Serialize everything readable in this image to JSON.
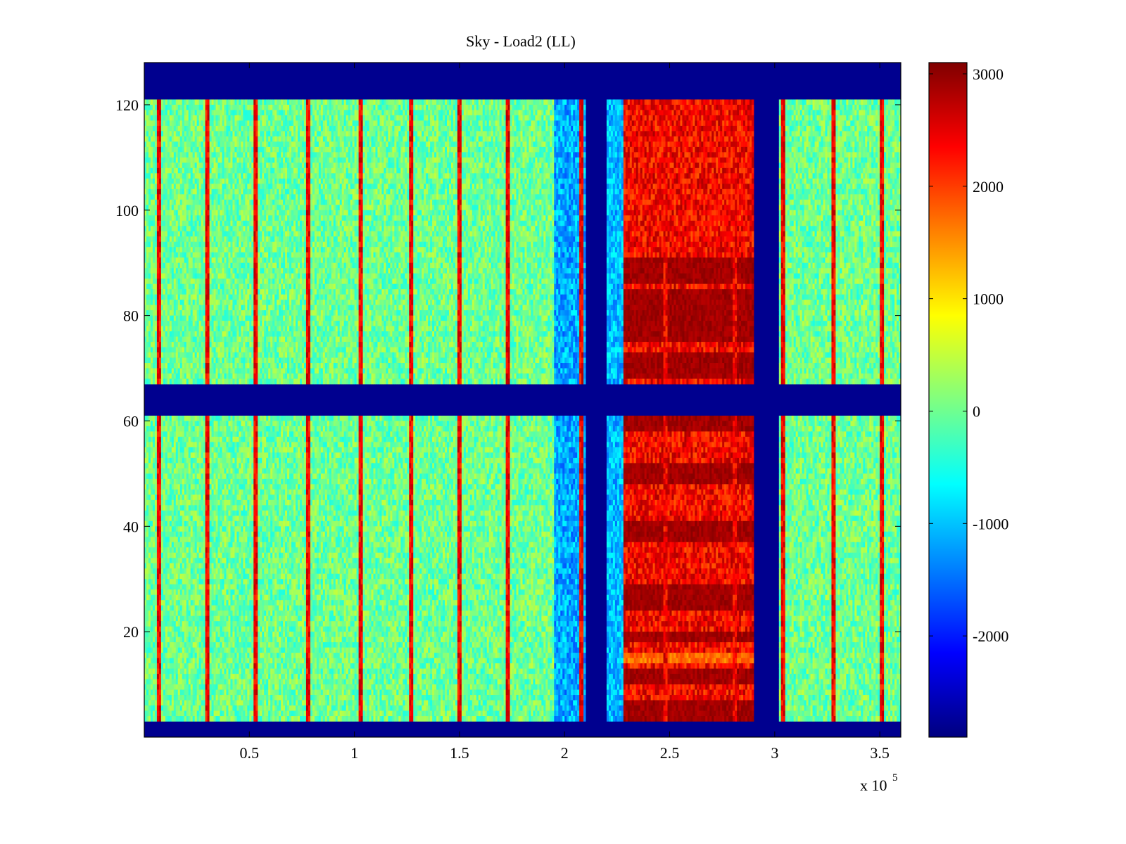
{
  "chart_data": {
    "type": "heatmap",
    "title": "Sky - Load2 (LL)",
    "xlabel": "",
    "ylabel": "",
    "x_multiplier_label": "x 10",
    "x_multiplier_exponent": "5",
    "xlim": [
      0,
      3.6
    ],
    "ylim": [
      0,
      128
    ],
    "x_ticks": [
      {
        "value": 0.5,
        "label": "0.5"
      },
      {
        "value": 1.0,
        "label": "1"
      },
      {
        "value": 1.5,
        "label": "1.5"
      },
      {
        "value": 2.0,
        "label": "2"
      },
      {
        "value": 2.5,
        "label": "2.5"
      },
      {
        "value": 3.0,
        "label": "3"
      },
      {
        "value": 3.5,
        "label": "3.5"
      }
    ],
    "y_ticks": [
      {
        "value": 20,
        "label": "20"
      },
      {
        "value": 40,
        "label": "40"
      },
      {
        "value": 60,
        "label": "60"
      },
      {
        "value": 80,
        "label": "80"
      },
      {
        "value": 100,
        "label": "100"
      },
      {
        "value": 120,
        "label": "120"
      }
    ],
    "colorbar": {
      "colormap": "jet",
      "clim": [
        -2900,
        3100
      ],
      "ticks": [
        {
          "value": 3000,
          "label": "3000"
        },
        {
          "value": 2000,
          "label": "2000"
        },
        {
          "value": 1000,
          "label": "1000"
        },
        {
          "value": 0,
          "label": "0"
        },
        {
          "value": -1000,
          "label": "-1000"
        },
        {
          "value": -2000,
          "label": "-2000"
        }
      ]
    },
    "masked_value": -2900,
    "masked_rows": [
      [
        0,
        3
      ],
      [
        61.5,
        67.5
      ],
      [
        121.5,
        128
      ]
    ],
    "masked_columns": [
      [
        2.1,
        2.2
      ],
      [
        2.9,
        3.02
      ]
    ],
    "column_regions": [
      {
        "x_range": [
          0.0,
          1.95
        ],
        "mean": 0,
        "spread": 500
      },
      {
        "x_range": [
          1.95,
          2.1
        ],
        "mean": -1150,
        "spread": 500
      },
      {
        "x_range": [
          2.2,
          2.28
        ],
        "mean": -1050,
        "spread": 450
      },
      {
        "x_range": [
          2.28,
          2.9
        ],
        "mean": 2350,
        "spread": 500
      },
      {
        "x_range": [
          3.02,
          3.6
        ],
        "mean": 0,
        "spread": 500
      }
    ],
    "hot_row_bands": [
      [
        68,
        73
      ],
      [
        75,
        85
      ],
      [
        86,
        91
      ],
      [
        3,
        7
      ],
      [
        10,
        13
      ],
      [
        18,
        20
      ],
      [
        24,
        29
      ],
      [
        37,
        41
      ],
      [
        48,
        52
      ],
      [
        58,
        61
      ]
    ],
    "bright_row_bands": [
      [
        14,
        16
      ]
    ],
    "spike_columns": [
      0.07,
      0.3,
      0.53,
      0.78,
      1.03,
      1.27,
      1.5,
      1.73,
      2.08,
      2.48,
      2.81,
      3.04,
      3.28,
      3.51
    ],
    "spike_value": 2400
  }
}
